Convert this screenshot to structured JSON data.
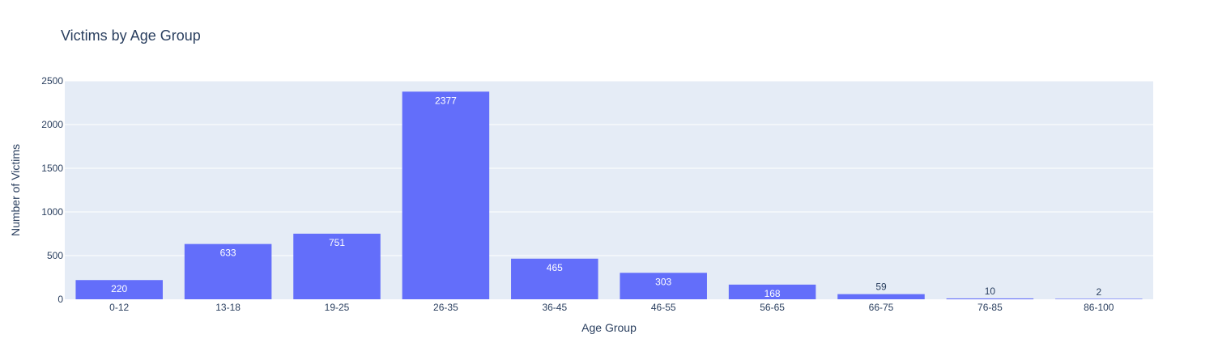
{
  "chart_data": {
    "type": "bar",
    "title": "Victims by Age Group",
    "xlabel": "Age Group",
    "ylabel": "Number of Victims",
    "categories": [
      "0-12",
      "13-18",
      "19-25",
      "26-35",
      "36-45",
      "46-55",
      "56-65",
      "66-75",
      "76-85",
      "86-100"
    ],
    "values": [
      220,
      633,
      751,
      2377,
      465,
      303,
      168,
      59,
      10,
      2
    ],
    "ylim": [
      0,
      2500
    ],
    "yticks": [
      0,
      500,
      1000,
      1500,
      2000,
      2500
    ],
    "grid": true,
    "legend": "none",
    "colors": {
      "bar": "#636efa",
      "plot_bg": "#e5ecf6",
      "grid": "#ffffff",
      "text": "#2a3f5f",
      "label_inside": "#ffffff"
    }
  }
}
